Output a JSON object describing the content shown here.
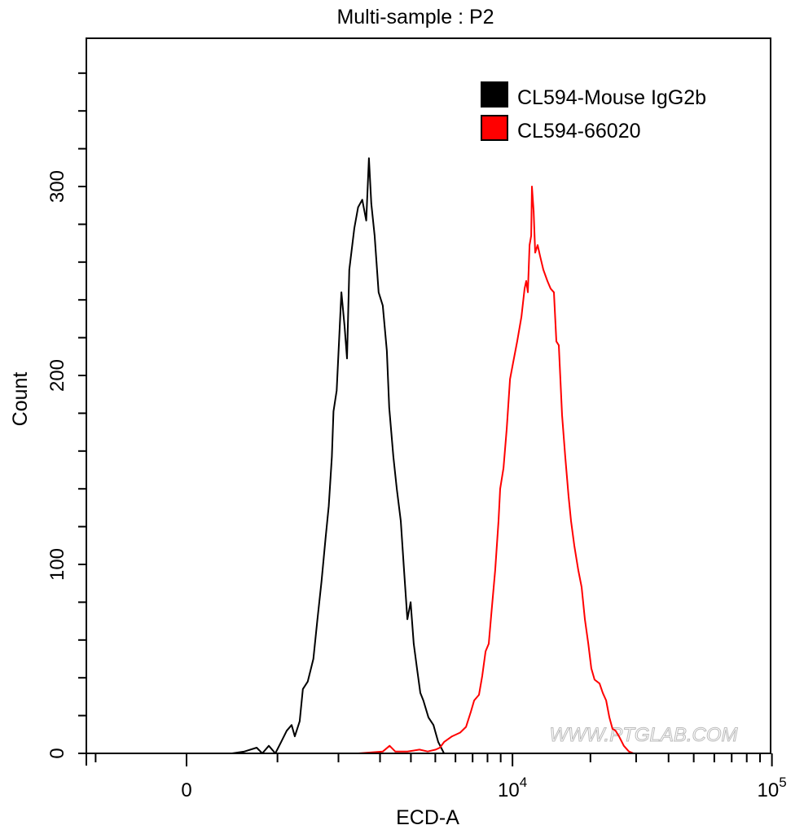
{
  "chart_data": {
    "type": "line",
    "title": "Multi-sample : P2",
    "xlabel": "ECD-A",
    "ylabel": "Count",
    "xscale": "biexponential",
    "xlim": [
      -1130,
      100000
    ],
    "ylim": [
      0,
      378
    ],
    "grid": false,
    "legend_placement": "top-right",
    "watermark": "WWW.PTGLAB.COM",
    "x_major_ticks": [
      {
        "value": 0,
        "label": "0"
      },
      {
        "value": 10000,
        "base": "10",
        "exp": "4"
      },
      {
        "value": 100000,
        "base": "10",
        "exp": "5"
      }
    ],
    "x_minor_ticks": [
      -1000,
      1000,
      2000,
      3000,
      4000,
      5000,
      6000,
      7000,
      8000,
      9000,
      20000,
      30000,
      40000,
      50000,
      60000,
      70000,
      80000,
      90000
    ],
    "y_ticks": [
      0,
      20,
      40,
      60,
      80,
      100,
      120,
      140,
      160,
      180,
      200,
      220,
      240,
      260,
      280,
      300,
      320,
      340,
      360
    ],
    "y_tick_labels": [
      "0",
      "100",
      "200",
      "300"
    ],
    "series": [
      {
        "name": "CL594-Mouse IgG2b",
        "color": "#000000",
        "x": [
          463,
          598,
          739,
          807,
          888,
          972,
          1049,
          1127,
          1196,
          1243,
          1317,
          1366,
          1443,
          1536,
          1605,
          1678,
          1751,
          1811,
          1869,
          1901,
          1964,
          2060,
          2127,
          2180,
          2230,
          2343,
          2430,
          2530,
          2630,
          2700,
          2760,
          2850,
          2960,
          3080,
          3200,
          3270,
          3400,
          3510,
          3644,
          3755,
          3871,
          3989,
          4105,
          4230,
          4360,
          4485,
          4700,
          4915,
          5136,
          5410
        ],
        "y": [
          0,
          1,
          3,
          0,
          4,
          0,
          6,
          12,
          15,
          9,
          17,
          34,
          38,
          50,
          71,
          91,
          114,
          131,
          157,
          181,
          192,
          244,
          226,
          209,
          256,
          278,
          289,
          293,
          282,
          315,
          291,
          274,
          244,
          237,
          213,
          183,
          157,
          140,
          123,
          97,
          71,
          80,
          58,
          45,
          32,
          28,
          19,
          15,
          6,
          0
        ]
      },
      {
        "name": "CL594-66020",
        "color": "#ff0000",
        "x": [
          1911,
          2437,
          3082,
          3283,
          3460,
          3871,
          4330,
          4665,
          5020,
          5210,
          5410,
          5815,
          6260,
          6600,
          6890,
          7100,
          7410,
          7630,
          7860,
          8090,
          8270,
          8570,
          8830,
          8960,
          9230,
          9500,
          9780,
          10060,
          10430,
          10830,
          11140,
          11300,
          11470,
          11640,
          11810,
          11890,
          12070,
          12240,
          12510,
          12790,
          13160,
          13650,
          14040,
          14460,
          14780,
          15100,
          15550,
          15990,
          16470,
          16840,
          17330,
          17950,
          18500,
          19040,
          19620,
          20160,
          20750,
          21690,
          22320,
          22990,
          23660,
          24330,
          25000,
          25780,
          26900,
          28120,
          29350,
          32030
        ],
        "y": [
          0,
          0,
          1,
          4,
          1,
          1,
          2,
          1,
          2,
          3,
          6,
          9,
          11,
          14,
          22,
          28,
          31,
          41,
          54,
          58,
          73,
          97,
          123,
          140,
          151,
          172,
          198,
          207,
          218,
          231,
          246,
          250,
          244,
          269,
          274,
          300,
          287,
          265,
          269,
          263,
          256,
          250,
          246,
          244,
          218,
          216,
          179,
          157,
          136,
          123,
          110,
          97,
          88,
          71,
          58,
          45,
          39,
          37,
          32,
          28,
          19,
          13,
          12,
          9,
          4,
          1,
          0,
          0
        ]
      }
    ]
  }
}
